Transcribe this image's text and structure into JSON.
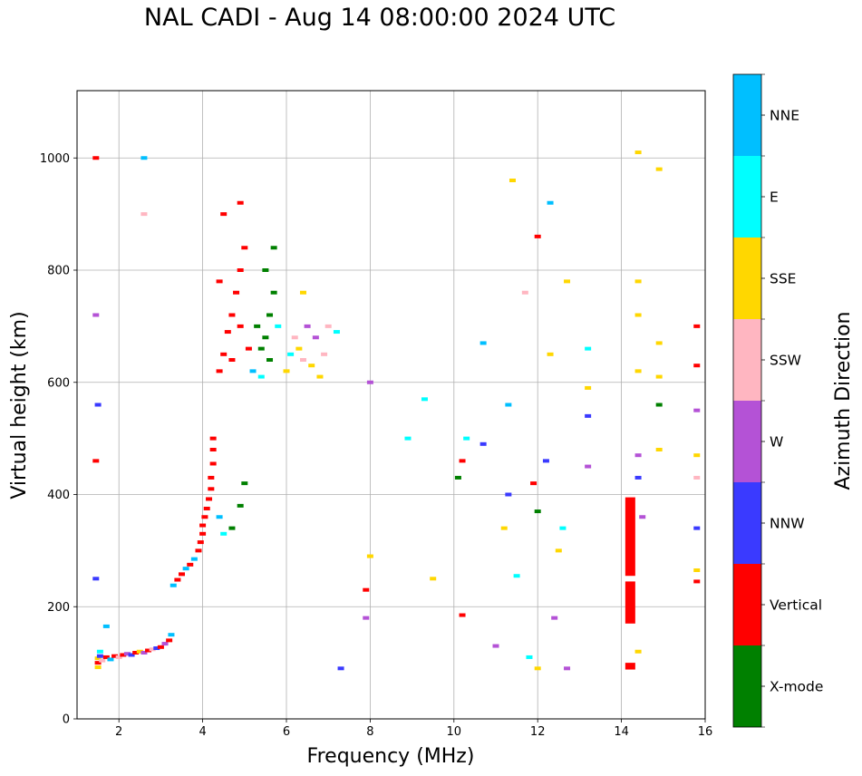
{
  "chart_data": {
    "type": "scatter",
    "title": "NAL CADI - Aug 14 08:00:00 2024 UTC",
    "xlabel": "Frequency (MHz)",
    "ylabel": "Virtual height (km)",
    "xlim": [
      1,
      16
    ],
    "ylim": [
      0,
      1120
    ],
    "xticks": [
      2,
      4,
      6,
      8,
      10,
      12,
      14,
      16
    ],
    "yticks": [
      0,
      200,
      400,
      600,
      800,
      1000
    ],
    "grid": true,
    "colorbar_label": "Azimuth Direction",
    "categories": [
      {
        "name": "X-mode",
        "color": "#008000"
      },
      {
        "name": "Vertical",
        "color": "#ff0000"
      },
      {
        "name": "NNW",
        "color": "#3a3aff"
      },
      {
        "name": "W",
        "color": "#b452d6"
      },
      {
        "name": "SSW",
        "color": "#ffb6c1"
      },
      {
        "name": "SSE",
        "color": "#ffd700"
      },
      {
        "name": "E",
        "color": "#00ffff"
      },
      {
        "name": "NNE",
        "color": "#00bfff"
      }
    ],
    "points": [
      [
        1.5,
        100,
        "Vertical"
      ],
      [
        1.5,
        108,
        "SSE"
      ],
      [
        1.55,
        112,
        "NNW"
      ],
      [
        1.6,
        104,
        "SSW"
      ],
      [
        1.7,
        110,
        "Vertical"
      ],
      [
        1.8,
        106,
        "NNE"
      ],
      [
        1.9,
        112,
        "Vertical"
      ],
      [
        2.0,
        110,
        "SSW"
      ],
      [
        2.1,
        114,
        "Vertical"
      ],
      [
        2.2,
        116,
        "W"
      ],
      [
        2.3,
        114,
        "NNW"
      ],
      [
        2.4,
        118,
        "Vertical"
      ],
      [
        2.5,
        120,
        "SSE"
      ],
      [
        2.6,
        118,
        "W"
      ],
      [
        2.7,
        122,
        "Vertical"
      ],
      [
        2.8,
        124,
        "SSW"
      ],
      [
        2.9,
        126,
        "NNW"
      ],
      [
        3.0,
        128,
        "Vertical"
      ],
      [
        3.1,
        134,
        "W"
      ],
      [
        3.2,
        140,
        "Vertical"
      ],
      [
        3.25,
        150,
        "NNE"
      ],
      [
        1.5,
        92,
        "SSE"
      ],
      [
        1.55,
        120,
        "E"
      ],
      [
        1.7,
        165,
        "NNE"
      ],
      [
        3.3,
        238,
        "NNE"
      ],
      [
        3.4,
        248,
        "Vertical"
      ],
      [
        3.5,
        258,
        "Vertical"
      ],
      [
        3.6,
        268,
        "NNE"
      ],
      [
        3.7,
        275,
        "Vertical"
      ],
      [
        3.8,
        285,
        "NNE"
      ],
      [
        3.9,
        300,
        "Vertical"
      ],
      [
        3.95,
        315,
        "Vertical"
      ],
      [
        4.0,
        330,
        "Vertical"
      ],
      [
        4.0,
        345,
        "Vertical"
      ],
      [
        4.05,
        360,
        "Vertical"
      ],
      [
        4.1,
        375,
        "Vertical"
      ],
      [
        4.15,
        392,
        "Vertical"
      ],
      [
        4.2,
        410,
        "Vertical"
      ],
      [
        4.2,
        430,
        "Vertical"
      ],
      [
        4.25,
        455,
        "Vertical"
      ],
      [
        4.25,
        480,
        "Vertical"
      ],
      [
        4.25,
        500,
        "Vertical"
      ],
      [
        4.4,
        360,
        "NNE"
      ],
      [
        4.5,
        330,
        "E"
      ],
      [
        4.7,
        340,
        "X-mode"
      ],
      [
        4.9,
        380,
        "X-mode"
      ],
      [
        5.0,
        420,
        "X-mode"
      ],
      [
        4.4,
        620,
        "Vertical"
      ],
      [
        4.5,
        650,
        "Vertical"
      ],
      [
        4.6,
        690,
        "Vertical"
      ],
      [
        4.7,
        720,
        "Vertical"
      ],
      [
        4.8,
        760,
        "Vertical"
      ],
      [
        4.9,
        800,
        "Vertical"
      ],
      [
        5.0,
        840,
        "Vertical"
      ],
      [
        4.4,
        780,
        "Vertical"
      ],
      [
        4.7,
        640,
        "Vertical"
      ],
      [
        4.9,
        700,
        "Vertical"
      ],
      [
        5.1,
        660,
        "Vertical"
      ],
      [
        5.2,
        620,
        "NNE"
      ],
      [
        5.3,
        700,
        "X-mode"
      ],
      [
        5.4,
        660,
        "X-mode"
      ],
      [
        5.5,
        680,
        "X-mode"
      ],
      [
        5.6,
        720,
        "X-mode"
      ],
      [
        5.7,
        760,
        "X-mode"
      ],
      [
        5.6,
        640,
        "X-mode"
      ],
      [
        5.8,
        700,
        "E"
      ],
      [
        5.5,
        800,
        "X-mode"
      ],
      [
        5.7,
        840,
        "X-mode"
      ],
      [
        5.4,
        610,
        "E"
      ],
      [
        6.0,
        620,
        "SSE"
      ],
      [
        6.1,
        650,
        "E"
      ],
      [
        6.2,
        680,
        "SSW"
      ],
      [
        6.3,
        660,
        "SSE"
      ],
      [
        6.4,
        640,
        "SSW"
      ],
      [
        6.5,
        700,
        "W"
      ],
      [
        6.6,
        630,
        "SSE"
      ],
      [
        6.7,
        680,
        "W"
      ],
      [
        6.8,
        610,
        "SSE"
      ],
      [
        6.9,
        650,
        "SSW"
      ],
      [
        7.0,
        700,
        "SSW"
      ],
      [
        7.2,
        690,
        "E"
      ],
      [
        6.4,
        760,
        "SSE"
      ],
      [
        1.45,
        1000,
        "Vertical"
      ],
      [
        1.45,
        720,
        "W"
      ],
      [
        1.45,
        460,
        "Vertical"
      ],
      [
        1.5,
        560,
        "NNW"
      ],
      [
        1.45,
        250,
        "NNW"
      ],
      [
        2.6,
        1000,
        "NNE"
      ],
      [
        2.6,
        900,
        "SSW"
      ],
      [
        4.5,
        900,
        "Vertical"
      ],
      [
        4.9,
        920,
        "Vertical"
      ],
      [
        7.3,
        90,
        "NNW"
      ],
      [
        7.9,
        230,
        "Vertical"
      ],
      [
        7.9,
        180,
        "W"
      ],
      [
        8.0,
        290,
        "SSE"
      ],
      [
        8.0,
        600,
        "W"
      ],
      [
        8.9,
        500,
        "E"
      ],
      [
        9.3,
        570,
        "E"
      ],
      [
        9.5,
        250,
        "SSE"
      ],
      [
        10.1,
        430,
        "X-mode"
      ],
      [
        10.2,
        185,
        "Vertical"
      ],
      [
        10.2,
        460,
        "Vertical"
      ],
      [
        10.3,
        500,
        "E"
      ],
      [
        10.7,
        670,
        "NNE"
      ],
      [
        10.7,
        490,
        "NNW"
      ],
      [
        11.0,
        130,
        "W"
      ],
      [
        11.2,
        340,
        "SSE"
      ],
      [
        11.3,
        400,
        "NNW"
      ],
      [
        11.3,
        560,
        "NNE"
      ],
      [
        11.4,
        960,
        "SSE"
      ],
      [
        11.5,
        255,
        "E"
      ],
      [
        11.7,
        760,
        "SSW"
      ],
      [
        11.8,
        110,
        "E"
      ],
      [
        11.9,
        420,
        "Vertical"
      ],
      [
        12.0,
        90,
        "SSE"
      ],
      [
        12.0,
        370,
        "X-mode"
      ],
      [
        12.0,
        860,
        "Vertical"
      ],
      [
        12.2,
        460,
        "NNW"
      ],
      [
        12.3,
        920,
        "NNE"
      ],
      [
        12.3,
        650,
        "SSE"
      ],
      [
        12.4,
        180,
        "W"
      ],
      [
        12.5,
        300,
        "SSE"
      ],
      [
        12.6,
        340,
        "E"
      ],
      [
        12.7,
        90,
        "W"
      ],
      [
        12.7,
        780,
        "SSE"
      ],
      [
        13.2,
        660,
        "E"
      ],
      [
        13.2,
        590,
        "SSE"
      ],
      [
        13.2,
        540,
        "NNW"
      ],
      [
        13.2,
        450,
        "W"
      ],
      [
        14.4,
        1010,
        "SSE"
      ],
      [
        14.4,
        780,
        "SSE"
      ],
      [
        14.4,
        720,
        "SSE"
      ],
      [
        14.4,
        620,
        "SSE"
      ],
      [
        14.4,
        470,
        "W"
      ],
      [
        14.4,
        430,
        "NNW"
      ],
      [
        14.5,
        360,
        "W"
      ],
      [
        14.4,
        120,
        "SSE"
      ],
      [
        14.9,
        980,
        "SSE"
      ],
      [
        14.9,
        670,
        "SSE"
      ],
      [
        14.9,
        610,
        "SSE"
      ],
      [
        14.9,
        560,
        "X-mode"
      ],
      [
        14.9,
        480,
        "SSE"
      ],
      [
        15.8,
        700,
        "Vertical"
      ],
      [
        15.8,
        630,
        "Vertical"
      ],
      [
        15.8,
        550,
        "W"
      ],
      [
        15.8,
        470,
        "SSE"
      ],
      [
        15.8,
        430,
        "SSW"
      ],
      [
        15.8,
        340,
        "NNW"
      ],
      [
        15.8,
        245,
        "Vertical"
      ],
      [
        15.8,
        265,
        "SSE"
      ]
    ],
    "bands": [
      {
        "x": 14.2,
        "y0": 170,
        "y1": 245,
        "direction": "Vertical"
      },
      {
        "x": 14.2,
        "y0": 255,
        "y1": 395,
        "direction": "Vertical"
      },
      {
        "x": 14.2,
        "y0": 88,
        "y1": 100,
        "direction": "Vertical"
      }
    ]
  }
}
